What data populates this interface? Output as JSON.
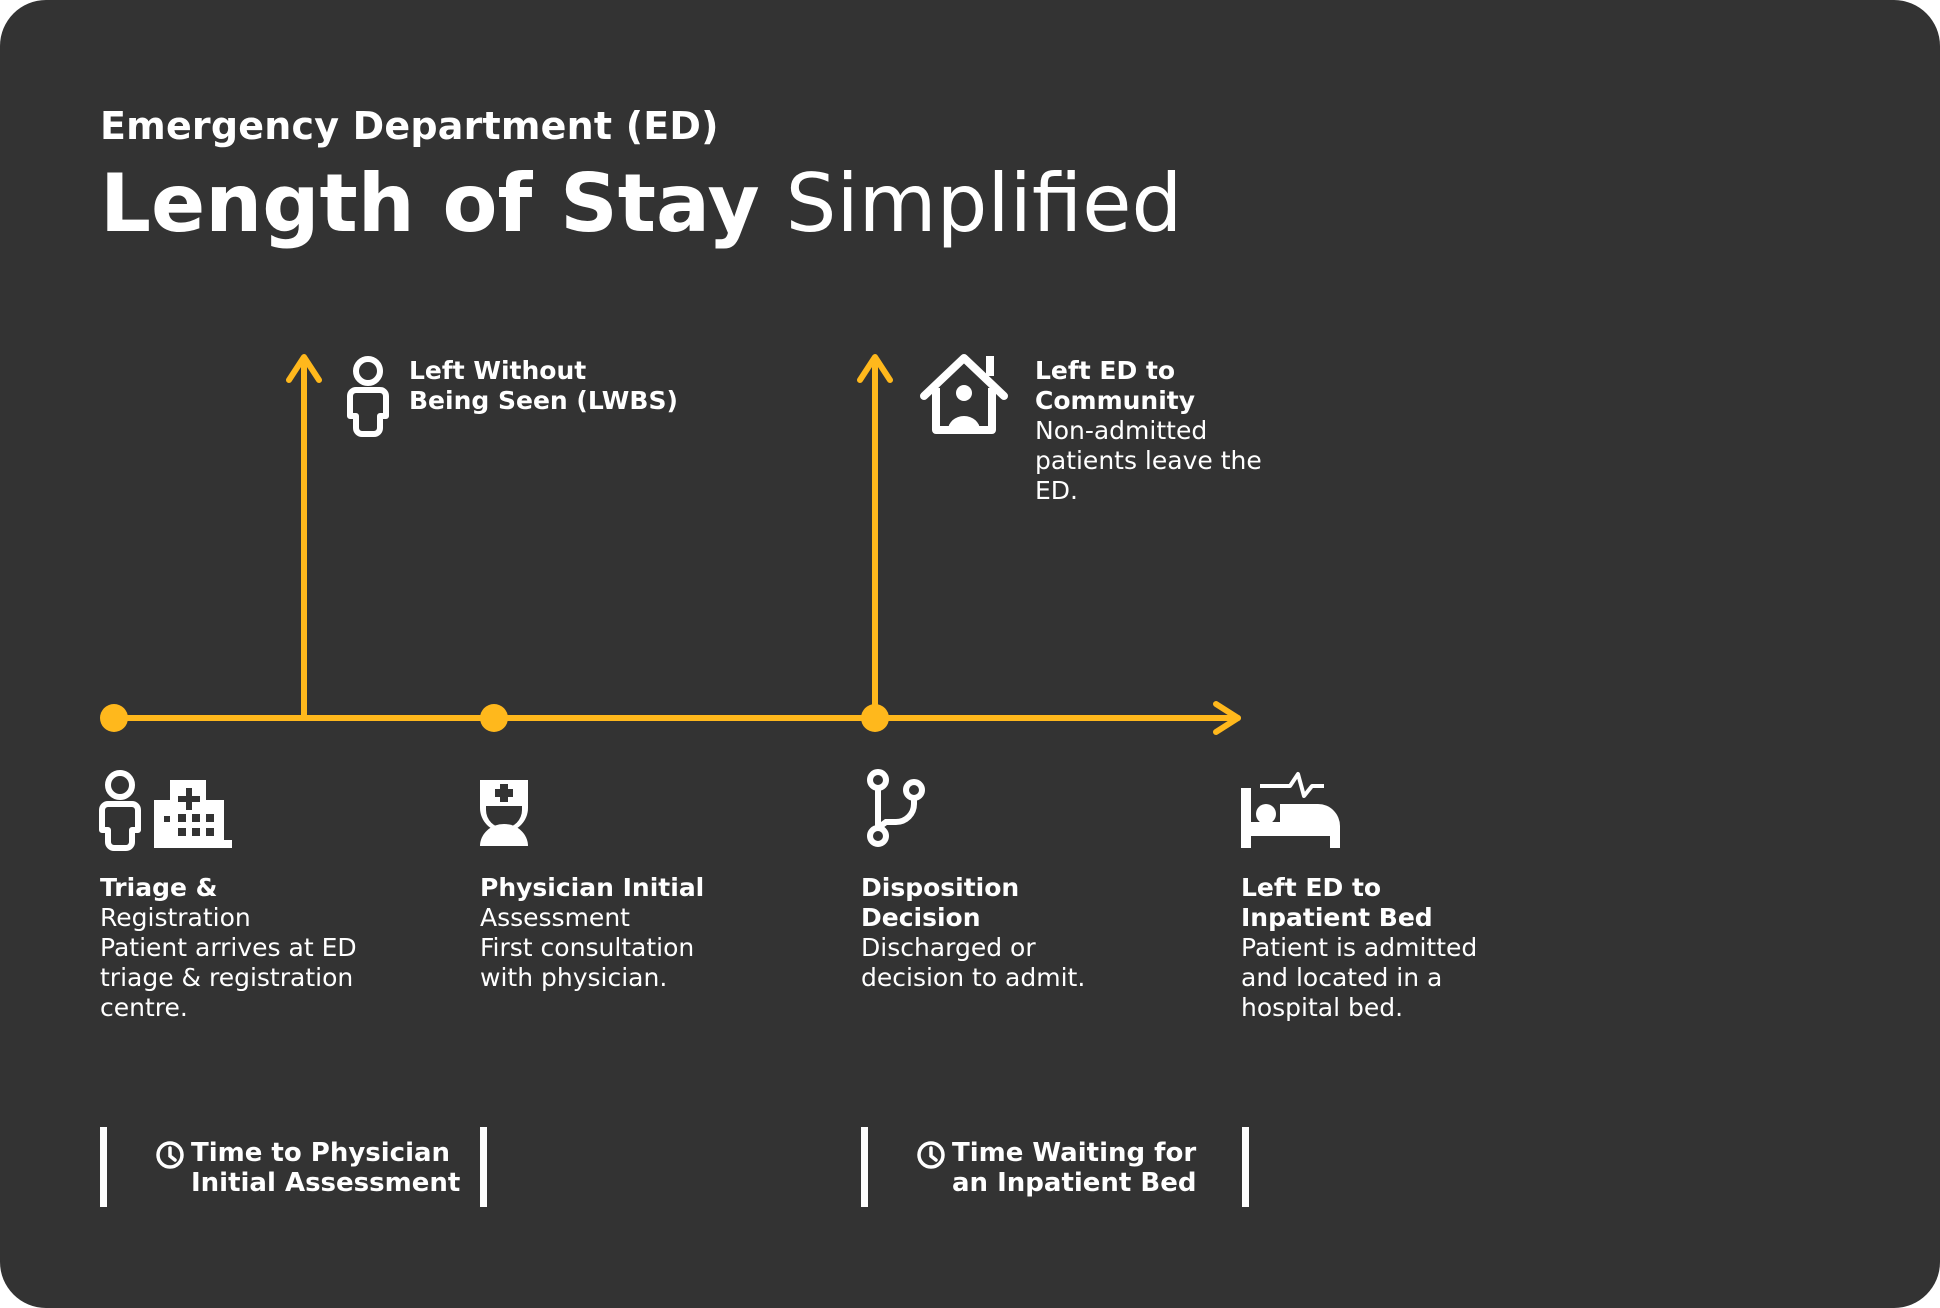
{
  "header": {
    "subtitle": "Emergency Department (ED)",
    "title_bold": "Length of Stay",
    "title_light": "Simplified"
  },
  "colors": {
    "background": "#333333",
    "timeline": "#FFB81C",
    "text": "#FFFFFF"
  },
  "branches": {
    "lwbs": {
      "line1": "Left Without",
      "line2": "Being Seen (LWBS)"
    },
    "community": {
      "line1": "Left ED to",
      "line2": "Community",
      "desc1": "Non-admitted",
      "desc2": "patients leave the",
      "desc3": "ED."
    }
  },
  "stages": [
    {
      "h1": "Triage &",
      "lines": [
        "Registration",
        "Patient arrives at ED",
        "triage & registration",
        "centre."
      ]
    },
    {
      "h1": "Physician Initial",
      "lines": [
        "Assessment",
        "First consultation",
        "with physician."
      ]
    },
    {
      "h1": "Disposition",
      "h2": "Decision",
      "lines": [
        "Discharged or",
        "decision to admit."
      ]
    },
    {
      "h1": "Left ED to",
      "h2": "Inpatient Bed",
      "lines": [
        "Patient is admitted",
        "and located in a",
        "hospital bed."
      ]
    }
  ],
  "intervals": [
    {
      "line1": "Time to Physician",
      "line2": "Initial Assessment"
    },
    {
      "line1": "Time Waiting for",
      "line2": "an Inpatient Bed"
    }
  ],
  "icons": [
    "person-icon",
    "hospital-icon",
    "physician-icon",
    "branch-icon",
    "hospital-bed-icon",
    "house-person-icon",
    "clock-icon"
  ]
}
